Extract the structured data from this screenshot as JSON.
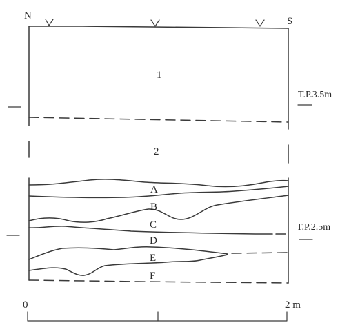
{
  "orientation": {
    "north": "N",
    "south": "S"
  },
  "layers": {
    "upper_1": "1",
    "upper_2": "2",
    "sub": [
      "A",
      "B",
      "C",
      "D",
      "E",
      "F"
    ]
  },
  "levels": {
    "upper": "T.P.3.5m",
    "lower": "T.P.2.5m"
  },
  "scale": {
    "start": "0",
    "end": "2 m",
    "length_m": 2
  },
  "colors": {
    "ink": "#3a3a3a",
    "background": "#ffffff"
  }
}
